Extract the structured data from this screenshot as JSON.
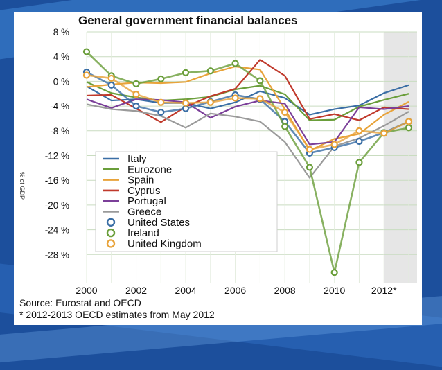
{
  "chart_data": {
    "type": "line",
    "title": "General government financial balances",
    "ylabel": "% of GDP",
    "xlabel": "",
    "ylim": [
      -32,
      8
    ],
    "xlim": [
      2000,
      2013
    ],
    "grid": "horizontal",
    "legend_position": "lower-left",
    "yticks": [
      {
        "value": 8,
        "label": "8 %"
      },
      {
        "value": 4,
        "label": "4 %"
      },
      {
        "value": 0,
        "label": "0 %"
      },
      {
        "value": -4,
        "label": "-4 %"
      },
      {
        "value": -8,
        "label": "-8 %"
      },
      {
        "value": -12,
        "label": "-12 %"
      },
      {
        "value": -16,
        "label": "-16 %"
      },
      {
        "value": -20,
        "label": "-20 %"
      },
      {
        "value": -24,
        "label": "-24 %"
      },
      {
        "value": -28,
        "label": "-28 %"
      }
    ],
    "xticks": [
      {
        "value": 2000,
        "label": "2000"
      },
      {
        "value": 2002,
        "label": "2002"
      },
      {
        "value": 2004,
        "label": "2004"
      },
      {
        "value": 2006,
        "label": "2006"
      },
      {
        "value": 2008,
        "label": "2008"
      },
      {
        "value": 2010,
        "label": "2010"
      },
      {
        "value": 2012,
        "label": "2012*"
      }
    ],
    "x": [
      2000,
      2001,
      2002,
      2003,
      2004,
      2005,
      2006,
      2007,
      2008,
      2009,
      2010,
      2011,
      2012,
      2013
    ],
    "series": [
      {
        "name": "Italy",
        "color": "#3a6ea5",
        "marker": false,
        "values": [
          -0.8,
          -3.1,
          -2.9,
          -3.5,
          -3.5,
          -4.4,
          -3.4,
          -1.6,
          -2.7,
          -5.4,
          -4.5,
          -3.9,
          -1.9,
          -0.6
        ]
      },
      {
        "name": "Eurozone",
        "color": "#6a9e3a",
        "marker": false,
        "values": [
          -0.1,
          -1.9,
          -2.6,
          -3.1,
          -2.9,
          -2.5,
          -1.3,
          -0.7,
          -2.1,
          -6.3,
          -6.2,
          -4.1,
          -3.0,
          -2.0
        ]
      },
      {
        "name": "Spain",
        "color": "#e8a33a",
        "marker": false,
        "values": [
          -0.9,
          -0.5,
          -0.2,
          -0.3,
          -0.1,
          1.3,
          2.4,
          1.9,
          -4.5,
          -11.2,
          -9.3,
          -8.5,
          -5.4,
          -3.3
        ]
      },
      {
        "name": "Cyprus",
        "color": "#c0392b",
        "marker": false,
        "values": [
          -2.3,
          -2.2,
          -4.4,
          -6.6,
          -4.1,
          -2.4,
          -1.2,
          3.5,
          0.9,
          -6.1,
          -5.3,
          -6.3,
          -4.2,
          -4.5
        ]
      },
      {
        "name": "Portugal",
        "color": "#7b3f99",
        "marker": false,
        "values": [
          -2.9,
          -4.3,
          -2.9,
          -3.0,
          -3.4,
          -5.9,
          -4.1,
          -3.1,
          -3.6,
          -10.2,
          -9.8,
          -4.2,
          -4.5,
          -4.0
        ]
      },
      {
        "name": "Greece",
        "color": "#9a9a9a",
        "marker": false,
        "values": [
          -3.7,
          -4.5,
          -4.8,
          -5.6,
          -7.5,
          -5.2,
          -5.7,
          -6.5,
          -9.8,
          -15.6,
          -10.5,
          -9.2,
          -7.2,
          -4.9
        ]
      },
      {
        "name": "United States",
        "color": "#3a6ea5",
        "marker": true,
        "values": [
          1.5,
          -0.6,
          -4.0,
          -5.0,
          -4.4,
          -3.3,
          -2.2,
          -2.9,
          -6.5,
          -11.6,
          -10.7,
          -9.7,
          -8.3,
          -6.5
        ]
      },
      {
        "name": "Ireland",
        "color": "#6a9e3a",
        "marker": true,
        "values": [
          4.8,
          0.9,
          -0.4,
          0.4,
          1.4,
          1.7,
          2.9,
          0.1,
          -7.3,
          -13.9,
          -30.9,
          -13.1,
          -8.3,
          -7.5
        ]
      },
      {
        "name": "United Kingdom",
        "color": "#e8a33a",
        "marker": true,
        "values": [
          1.0,
          0.5,
          -2.1,
          -3.4,
          -3.5,
          -3.4,
          -2.7,
          -2.8,
          -5.0,
          -11.0,
          -10.2,
          -8.0,
          -8.4,
          -6.5
        ]
      }
    ],
    "forecast_region": {
      "from": 2012,
      "to": 2013
    },
    "notes": [
      "Source: Eurostat and OECD",
      "* 2012-2013 OECD estimates from May 2012"
    ]
  }
}
